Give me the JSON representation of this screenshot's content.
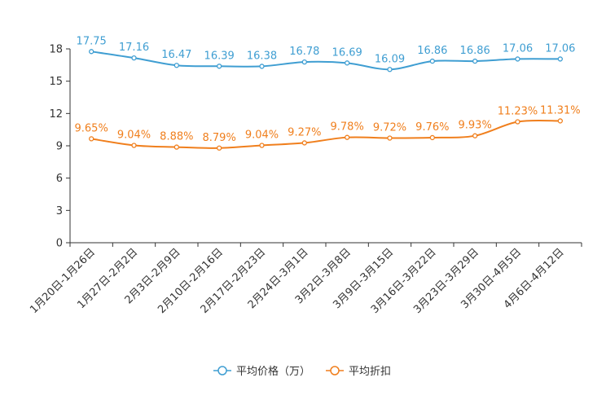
{
  "chart_data": {
    "type": "line",
    "categories": [
      "1月20日-1月26日",
      "1月27日-2月2日",
      "2月3日-2月9日",
      "2月10日-2月16日",
      "2月17日-2月23日",
      "2月24日-3月1日",
      "3月2日-3月8日",
      "3月9日-3月15日",
      "3月16日-3月22日",
      "3月23日-3月29日",
      "3月30日-4月5日",
      "4月6日-4月12日"
    ],
    "series": [
      {
        "name": "平均价格（万）",
        "color": "#3f9ed2",
        "values": [
          17.75,
          17.16,
          16.47,
          16.39,
          16.38,
          16.78,
          16.69,
          16.09,
          16.86,
          16.86,
          17.06,
          17.06
        ],
        "labels": [
          "17.75",
          "17.16",
          "16.47",
          "16.39",
          "16.38",
          "16.78",
          "16.69",
          "16.09",
          "16.86",
          "16.86",
          "17.06",
          "17.06"
        ]
      },
      {
        "name": "平均折扣",
        "color": "#f07f1d",
        "values": [
          9.65,
          9.04,
          8.88,
          8.79,
          9.04,
          9.27,
          9.78,
          9.72,
          9.76,
          9.93,
          11.23,
          11.31
        ],
        "labels": [
          "9.65%",
          "9.04%",
          "8.88%",
          "8.79%",
          "9.04%",
          "9.27%",
          "9.78%",
          "9.72%",
          "9.76%",
          "9.93%",
          "11.23%",
          "11.31%"
        ]
      }
    ],
    "yticks": [
      0,
      3,
      6,
      9,
      12,
      15,
      18
    ],
    "ylim": [
      0,
      18
    ],
    "legend_position": "bottom-center"
  }
}
